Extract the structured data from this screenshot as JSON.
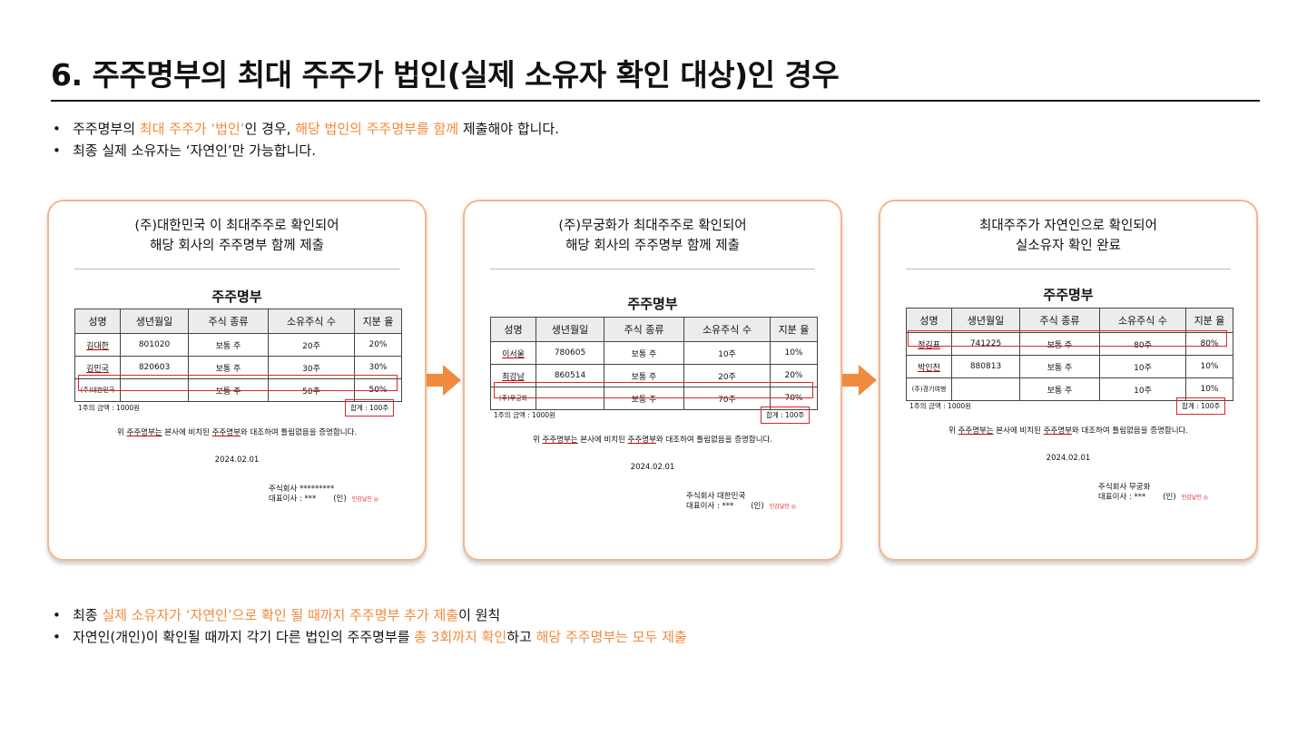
{
  "title": "6. 주주명부의 최대 주주가 법인(실제 소유자 확인 대상)인 경우",
  "top_bullets": [
    {
      "t1": "주주명부의 ",
      "h1": "최대 주주가 ‘법인’",
      "t2": "인 경우, ",
      "h2": "해당 법인의 주주명부를 함께",
      "t3": " 제출해야 합니다."
    },
    {
      "t1": "최종 실제 소유자는 ‘자연인’만 가능합니다."
    }
  ],
  "bottom_bullets": [
    {
      "t1": "최종 ",
      "h1": "실제 소유자가 ‘자연인’으로 확인 될 때까지 주주명부 추가 제출",
      "t2": "이 원칙"
    },
    {
      "t1": "자연인(개인)이 확인될 때까지 각기 다른 법인의 주주명부를 ",
      "h1": "총 3회까지 확인",
      "t2": "하고 ",
      "h2": "해당 주주명부는 모두 제출"
    }
  ],
  "colors": {
    "accent": "#f08a3c",
    "card_border": "#f6b48a",
    "highlight_box": "#e0242b"
  },
  "icons": {
    "arrow": "arrow-right-icon"
  },
  "headers": [
    "성명",
    "생년월일",
    "주식 종류",
    "소유주식 수",
    "지분 율"
  ],
  "doc_title": "주주명부",
  "unit_price": "1주의 금액 : 1000원",
  "total": "합계 : 100주",
  "cert_pre": "위 ",
  "cert_ul1": "주주명부는",
  "cert_mid": " 본사에 비치된 ",
  "cert_ul2": "주주명부",
  "cert_post": "와 대조하여 틀림없음을 증명합니다.",
  "date": "2024.02.01",
  "rep": "대표이사 : ***",
  "seal_mark": "(인)",
  "seal_stamp": "인감날인 ◎",
  "cards": [
    {
      "head1": "(주)대한민국 이 최대주주로 확인되어",
      "head2": "해당 회사의 주주명부 함께 제출",
      "company": "주식회사 *********",
      "rows": [
        [
          "김대한",
          "801020",
          "보통 주",
          "20주",
          "20%"
        ],
        [
          "김민국",
          "820603",
          "보통 주",
          "30주",
          "30%"
        ],
        [
          "(주)대한민국",
          "",
          "보통 주",
          "50주",
          "50%"
        ]
      ]
    },
    {
      "head1": "(주)무궁화가 최대주주로 확인되어",
      "head2": "해당 회사의 주주명부 함께 제출",
      "company": "주식회사 대한민국",
      "rows": [
        [
          "이서울",
          "780605",
          "보통 주",
          "10주",
          "10%"
        ],
        [
          "최강남",
          "860514",
          "보통 주",
          "20주",
          "20%"
        ],
        [
          "(주)무궁화",
          "",
          "보통 주",
          "70주",
          "70%"
        ]
      ]
    },
    {
      "head1": "최대주주가 자연인으로 확인되어",
      "head2": "실소유자 확인 완료",
      "company": "주식회사 무궁화",
      "rows": [
        [
          "정김표",
          "741225",
          "보통 주",
          "80주",
          "80%"
        ],
        [
          "박인천",
          "880813",
          "보통 주",
          "10주",
          "10%"
        ],
        [
          "(주)경기여행",
          "",
          "보통 주",
          "10주",
          "10%"
        ]
      ]
    }
  ]
}
